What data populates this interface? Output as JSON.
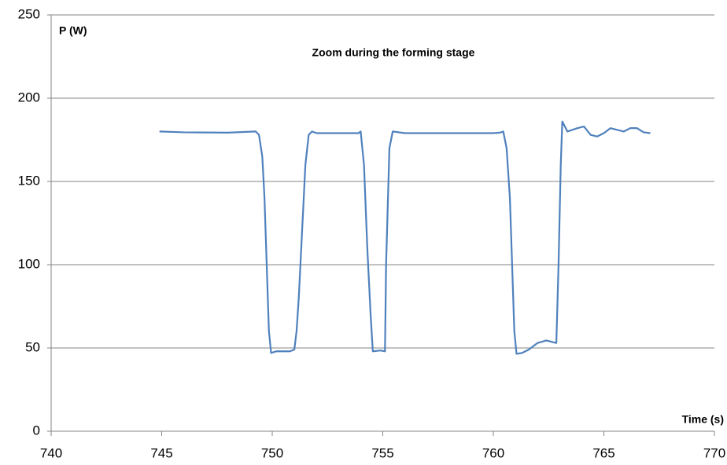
{
  "chart_data": {
    "type": "line",
    "title": "Zoom during the forming stage",
    "ylabel": "P (W)",
    "xlabel": "Time (s)",
    "x": [
      744.9,
      746,
      748,
      749.25,
      749.4,
      749.55,
      749.65,
      749.75,
      749.85,
      749.95,
      750.2,
      750.8,
      751.0,
      751.1,
      751.2,
      751.35,
      751.5,
      751.65,
      751.8,
      752,
      753.9,
      754.0,
      754.15,
      754.3,
      754.45,
      754.55,
      754.9,
      755.1,
      755.15,
      755.3,
      755.45,
      756,
      760,
      760.3,
      760.45,
      760.6,
      760.75,
      760.85,
      760.95,
      761.05,
      761.3,
      761.6,
      762,
      762.4,
      762.85,
      762.95,
      763.05,
      763.12,
      763.35,
      763.8,
      764.1,
      764.4,
      764.7,
      765.0,
      765.3,
      765.6,
      765.9,
      766.2,
      766.5,
      766.8,
      767.1
    ],
    "series": [
      {
        "name": "P",
        "color": "#4f81bd",
        "values": [
          180,
          179.5,
          179.3,
          180,
          178,
          165,
          140,
          100,
          60,
          47,
          48,
          48,
          49,
          60,
          80,
          120,
          160,
          178,
          180,
          179,
          179,
          180,
          160,
          110,
          70,
          48,
          48.5,
          48,
          100,
          170,
          180,
          179,
          179,
          179.3,
          180,
          170,
          140,
          100,
          60,
          46.5,
          47,
          49,
          53,
          54.5,
          53,
          100,
          160,
          186,
          180,
          182,
          183,
          178,
          177,
          179,
          182,
          181,
          180,
          182,
          182,
          179.5,
          179
        ]
      }
    ],
    "xlim": [
      740,
      770
    ],
    "xticks": [
      740,
      745,
      750,
      755,
      760,
      765,
      770
    ],
    "ylim": [
      0,
      250
    ],
    "yticks": [
      0,
      50,
      100,
      150,
      200,
      250
    ],
    "grid": true
  }
}
